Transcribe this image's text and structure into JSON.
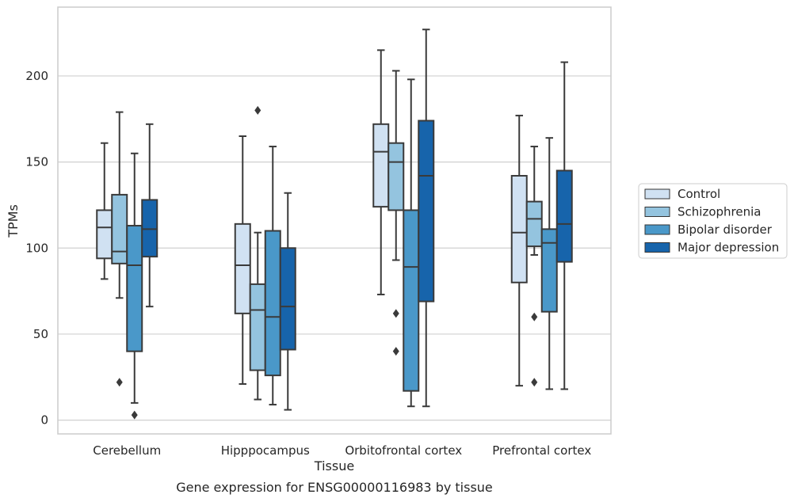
{
  "chart_data": {
    "type": "box",
    "xlabel": "Tissue",
    "ylabel": "TPMs",
    "caption": "Gene expression for ENSG00000116983 by tissue",
    "ylim": [
      -8,
      240
    ],
    "yticks": [
      0,
      50,
      100,
      150,
      200
    ],
    "grid": "horizontal",
    "legend_position": "right",
    "categories": [
      "Cerebellum",
      "Hipppocampus",
      "Orbitofrontal cortex",
      "Prefrontal cortex"
    ],
    "series": [
      {
        "name": "Control",
        "color": "#d0e1f2",
        "boxes": [
          {
            "whisker_low": 82,
            "q1": 94,
            "median": 112,
            "q3": 122,
            "whisker_high": 161,
            "outliers": []
          },
          {
            "whisker_low": 21,
            "q1": 62,
            "median": 90,
            "q3": 114,
            "whisker_high": 165,
            "outliers": []
          },
          {
            "whisker_low": 73,
            "q1": 124,
            "median": 156,
            "q3": 172,
            "whisker_high": 215,
            "outliers": []
          },
          {
            "whisker_low": 20,
            "q1": 80,
            "median": 109,
            "q3": 142,
            "whisker_high": 177,
            "outliers": []
          }
        ]
      },
      {
        "name": "Schizophrenia",
        "color": "#94c4df",
        "boxes": [
          {
            "whisker_low": 71,
            "q1": 91,
            "median": 98,
            "q3": 131,
            "whisker_high": 179,
            "outliers": [
              22
            ]
          },
          {
            "whisker_low": 12,
            "q1": 29,
            "median": 64,
            "q3": 79,
            "whisker_high": 109,
            "outliers": [
              180
            ]
          },
          {
            "whisker_low": 93,
            "q1": 122,
            "median": 150,
            "q3": 161,
            "whisker_high": 203,
            "outliers": [
              62,
              40
            ]
          },
          {
            "whisker_low": 96,
            "q1": 101,
            "median": 117,
            "q3": 127,
            "whisker_high": 159,
            "outliers": [
              60,
              22
            ]
          }
        ]
      },
      {
        "name": "Bipolar disorder",
        "color": "#4a98c9",
        "boxes": [
          {
            "whisker_low": 10,
            "q1": 40,
            "median": 90,
            "q3": 113,
            "whisker_high": 155,
            "outliers": [
              3
            ]
          },
          {
            "whisker_low": 9,
            "q1": 26,
            "median": 60,
            "q3": 110,
            "whisker_high": 159,
            "outliers": []
          },
          {
            "whisker_low": 8,
            "q1": 17,
            "median": 89,
            "q3": 122,
            "whisker_high": 198,
            "outliers": []
          },
          {
            "whisker_low": 18,
            "q1": 63,
            "median": 103,
            "q3": 111,
            "whisker_high": 164,
            "outliers": []
          }
        ]
      },
      {
        "name": "Major depression",
        "color": "#1764ab",
        "boxes": [
          {
            "whisker_low": 66,
            "q1": 95,
            "median": 111,
            "q3": 128,
            "whisker_high": 172,
            "outliers": []
          },
          {
            "whisker_low": 6,
            "q1": 41,
            "median": 66,
            "q3": 100,
            "whisker_high": 132,
            "outliers": []
          },
          {
            "whisker_low": 8,
            "q1": 69,
            "median": 142,
            "q3": 174,
            "whisker_high": 227,
            "outliers": []
          },
          {
            "whisker_low": 18,
            "q1": 92,
            "median": 114,
            "q3": 145,
            "whisker_high": 208,
            "outliers": []
          }
        ]
      }
    ]
  }
}
